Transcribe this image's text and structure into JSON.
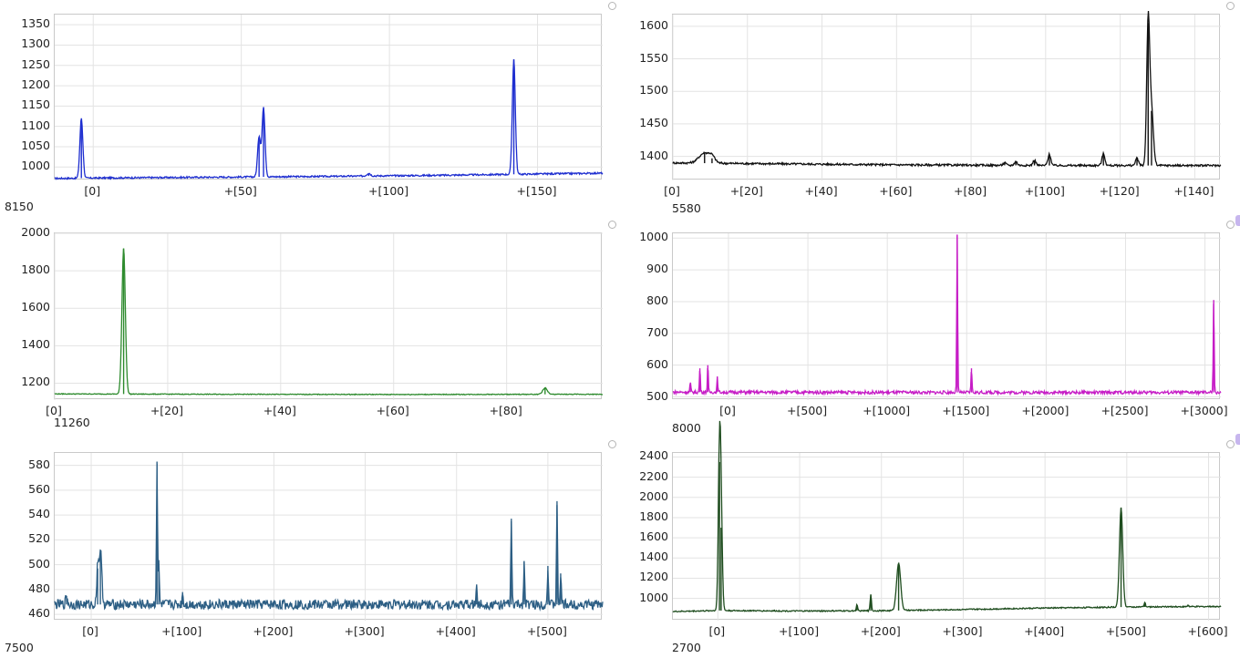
{
  "chart_data": [
    {
      "type": "line",
      "id": "c1",
      "color": "#1f2fd0",
      "xlim": [
        -13,
        172
      ],
      "ylim": [
        967,
        1375
      ],
      "y_ticks": [
        1000,
        1050,
        1100,
        1150,
        1200,
        1250,
        1300,
        1350
      ],
      "x_ticks": [
        {
          "v": 0,
          "label": "[0]"
        },
        {
          "v": 50,
          "label": "+[50]"
        },
        {
          "v": 100,
          "label": "+[100]"
        },
        {
          "v": 150,
          "label": "+[150]"
        }
      ],
      "x_offset": "8150",
      "baseline": {
        "x": [
          -13,
          0,
          40,
          80,
          120,
          172
        ],
        "y": [
          972,
          973,
          975,
          977,
          980,
          985
        ]
      },
      "peaks": [
        {
          "x": -4,
          "y": 1120,
          "w": 0.5
        },
        {
          "x": 56,
          "y": 1075,
          "w": 0.5
        },
        {
          "x": 57.5,
          "y": 1145,
          "w": 0.5
        },
        {
          "x": 93,
          "y": 985,
          "w": 0.6
        },
        {
          "x": 142,
          "y": 1265,
          "w": 0.5
        }
      ],
      "noise": 2
    },
    {
      "type": "line",
      "id": "c2",
      "color": "#111111",
      "xlim": [
        0,
        147
      ],
      "ylim": [
        1363,
        1618
      ],
      "y_ticks": [
        1400,
        1450,
        1500,
        1550,
        1600
      ],
      "x_ticks": [
        {
          "v": 0,
          "label": "[0]"
        },
        {
          "v": 20,
          "label": "+[20]"
        },
        {
          "v": 40,
          "label": "+[40]"
        },
        {
          "v": 60,
          "label": "+[60]"
        },
        {
          "v": 80,
          "label": "+[80]"
        },
        {
          "v": 100,
          "label": "+[100]"
        },
        {
          "v": 120,
          "label": "+[120]"
        },
        {
          "v": 140,
          "label": "+[140]"
        }
      ],
      "x_offset": "5580",
      "baseline": {
        "x": [
          0,
          20,
          60,
          100,
          147
        ],
        "y": [
          1390,
          1389,
          1387,
          1386,
          1386
        ]
      },
      "peaks": [
        {
          "x": 8.5,
          "y": 1405,
          "w": 1.5
        },
        {
          "x": 10.5,
          "y": 1397,
          "w": 0.8
        },
        {
          "x": 89,
          "y": 1390,
          "w": 0.4
        },
        {
          "x": 92,
          "y": 1392,
          "w": 0.4
        },
        {
          "x": 97,
          "y": 1394,
          "w": 0.4
        },
        {
          "x": 101,
          "y": 1403,
          "w": 0.4
        },
        {
          "x": 115.5,
          "y": 1404,
          "w": 0.4
        },
        {
          "x": 124.5,
          "y": 1397,
          "w": 0.4
        },
        {
          "x": 127.5,
          "y": 1605,
          "w": 0.4
        },
        {
          "x": 128.4,
          "y": 1470,
          "w": 0.5
        }
      ],
      "noise": 1.5
    },
    {
      "type": "line",
      "id": "c3",
      "color": "#2e8b2e",
      "xlim": [
        0,
        97
      ],
      "ylim": [
        1110,
        2000
      ],
      "y_ticks": [
        1200,
        1400,
        1600,
        1800,
        2000
      ],
      "x_ticks": [
        {
          "v": 0,
          "label": "[0]"
        },
        {
          "v": 20,
          "label": "+[20]"
        },
        {
          "v": 40,
          "label": "+[40]"
        },
        {
          "v": 60,
          "label": "+[60]"
        },
        {
          "v": 80,
          "label": "+[80]"
        }
      ],
      "x_offset": "11260",
      "baseline": {
        "x": [
          0,
          30,
          60,
          97
        ],
        "y": [
          1143,
          1141,
          1140,
          1141
        ]
      },
      "peaks": [
        {
          "x": 12.2,
          "y": 1920,
          "w": 0.3
        },
        {
          "x": 86.8,
          "y": 1175,
          "w": 0.4
        }
      ],
      "noise": 2
    },
    {
      "type": "line",
      "id": "c4",
      "color": "#c61cc6",
      "xlim": [
        -350,
        3100
      ],
      "ylim": [
        490,
        1015
      ],
      "y_ticks": [
        500,
        600,
        700,
        800,
        900,
        1000
      ],
      "x_ticks": [
        {
          "v": 0,
          "label": "[0]"
        },
        {
          "v": 500,
          "label": "+[500]"
        },
        {
          "v": 1000,
          "label": "+[1000]"
        },
        {
          "v": 1500,
          "label": "+[1500]"
        },
        {
          "v": 2000,
          "label": "+[2000]"
        },
        {
          "v": 2500,
          "label": "+[2500]"
        },
        {
          "v": 3000,
          "label": "+[3000]"
        }
      ],
      "x_offset": "8000",
      "baseline": {
        "x": [
          -350,
          1000,
          3100
        ],
        "y": [
          515,
          514,
          514
        ]
      },
      "peaks": [
        {
          "x": -240,
          "y": 545,
          "w": 3
        },
        {
          "x": -180,
          "y": 590,
          "w": 3
        },
        {
          "x": -130,
          "y": 600,
          "w": 3
        },
        {
          "x": -70,
          "y": 560,
          "w": 3
        },
        {
          "x": 1440,
          "y": 1010,
          "w": 3
        },
        {
          "x": 1530,
          "y": 590,
          "w": 3
        },
        {
          "x": 3055,
          "y": 805,
          "w": 3
        }
      ],
      "noise": 5
    },
    {
      "type": "line",
      "id": "c5",
      "color": "#2c5e84",
      "xlim": [
        -40,
        560
      ],
      "ylim": [
        455,
        590
      ],
      "y_ticks": [
        460,
        480,
        500,
        520,
        540,
        560,
        580
      ],
      "x_ticks": [
        {
          "v": 0,
          "label": "[0]"
        },
        {
          "v": 100,
          "label": "+[100]"
        },
        {
          "v": 200,
          "label": "+[200]"
        },
        {
          "v": 300,
          "label": "+[300]"
        },
        {
          "v": 400,
          "label": "+[400]"
        },
        {
          "v": 500,
          "label": "+[500]"
        }
      ],
      "x_offset": "7500",
      "baseline": {
        "x": [
          -40,
          560
        ],
        "y": [
          468,
          468
        ]
      },
      "peaks": [
        {
          "x": -27,
          "y": 475,
          "w": 1
        },
        {
          "x": 10,
          "y": 512,
          "w": 1.5
        },
        {
          "x": 7,
          "y": 497,
          "w": 1
        },
        {
          "x": 72,
          "y": 583,
          "w": 0.6
        },
        {
          "x": 74,
          "y": 500,
          "w": 0.6
        },
        {
          "x": 100,
          "y": 478,
          "w": 0.6
        },
        {
          "x": 422,
          "y": 483,
          "w": 0.6
        },
        {
          "x": 460,
          "y": 535,
          "w": 0.6
        },
        {
          "x": 474,
          "y": 503,
          "w": 0.6
        },
        {
          "x": 500,
          "y": 499,
          "w": 0.6
        },
        {
          "x": 510,
          "y": 548,
          "w": 0.6
        },
        {
          "x": 514,
          "y": 493,
          "w": 0.6
        }
      ],
      "noise": 4
    },
    {
      "type": "line",
      "id": "c6",
      "color": "#1f4d1f",
      "xlim": [
        -55,
        615
      ],
      "ylim": [
        780,
        2440
      ],
      "y_ticks": [
        1000,
        1200,
        1400,
        1600,
        1800,
        2000,
        2200,
        2400
      ],
      "x_ticks": [
        {
          "v": 0,
          "label": "[0]"
        },
        {
          "v": 100,
          "label": "+[100]"
        },
        {
          "v": 200,
          "label": "+[200]"
        },
        {
          "v": 300,
          "label": "+[300]"
        },
        {
          "v": 400,
          "label": "+[400]"
        },
        {
          "v": 500,
          "label": "+[500]"
        },
        {
          "v": 600,
          "label": "+[600]"
        }
      ],
      "x_offset": "2700",
      "baseline": {
        "x": [
          -55,
          0,
          100,
          200,
          300,
          400,
          500,
          615
        ],
        "y": [
          870,
          880,
          875,
          878,
          890,
          905,
          915,
          920
        ]
      },
      "peaks": [
        {
          "x": 2,
          "y": 2350,
          "w": 1.5
        },
        {
          "x": 4,
          "y": 1700,
          "w": 1.5
        },
        {
          "x": 170,
          "y": 935,
          "w": 0.8
        },
        {
          "x": 187,
          "y": 1040,
          "w": 0.8
        },
        {
          "x": 221,
          "y": 1350,
          "w": 2.5
        },
        {
          "x": 493,
          "y": 1900,
          "w": 2
        },
        {
          "x": 522,
          "y": 960,
          "w": 0.8
        },
        {
          "x": 575,
          "y": 935,
          "w": 0.8
        }
      ],
      "noise": 6
    }
  ]
}
